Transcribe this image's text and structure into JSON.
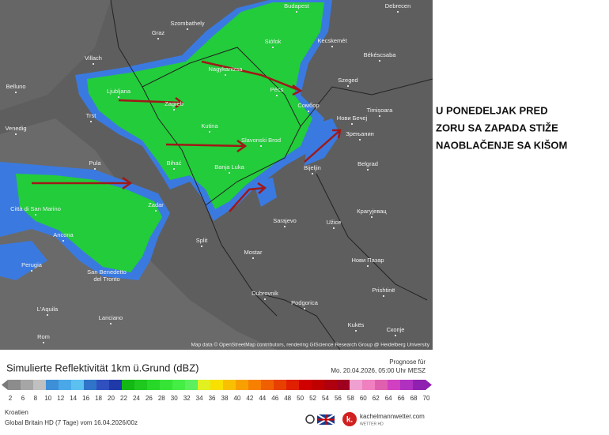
{
  "map": {
    "cities": [
      "Budapest",
      "Debrecen",
      "Szombathely",
      "Graz",
      "Siófok",
      "Kecskemét",
      "Békéscsaba",
      "Villach",
      "Nagykanizsa",
      "Szeged",
      "Belluno",
      "Ljubljana",
      "Zagreb",
      "Pécs",
      "Сомбор",
      "Timișoara",
      "Trst",
      "Venedig",
      "Kutina",
      "Нови Бечеј",
      "Slavonski Brod",
      "Зрењанин",
      "Pula",
      "Bihać",
      "Banja Luka",
      "Bijeljin",
      "Belgrad",
      "Città di San Marino",
      "Zadar",
      "Крагујевац",
      "Ancona",
      "Sarajevo",
      "Užice",
      "Perugia",
      "Split",
      "Mostar",
      "Нови Пазар",
      "San Benedetto del Tronto",
      "Dubrovnik",
      "Podgorica",
      "Prishtinë",
      "L'Aquila",
      "Lanciano",
      "Kukës",
      "Rom",
      "Скопје"
    ],
    "attribution": "Map data © OpenStreetMap contributors, rendering GIScience Research Group @ Heidelberg University"
  },
  "annotation": [
    "U PONEDELJAK PRED",
    "ZORU SA ZAPADA STIŽE",
    "NAOBLAČENJE SA KIŠOM"
  ],
  "legend": {
    "title": "Simulierte Reflektivität 1km ü.Grund (dBZ)",
    "forecast_label": "Prognose für",
    "forecast_time": "Mo. 20.04.2026, 05:00 Uhr MESZ",
    "ticks": [
      2,
      6,
      8,
      10,
      12,
      14,
      16,
      18,
      20,
      22,
      24,
      26,
      28,
      30,
      32,
      34,
      36,
      38,
      40,
      42,
      44,
      46,
      48,
      50,
      52,
      54,
      56,
      58,
      60,
      62,
      64,
      66,
      68,
      70
    ],
    "colors": [
      "#8c8c8c",
      "#a6a6a6",
      "#c0c0c0",
      "#3d8fd8",
      "#4aa8e8",
      "#5cc0f0",
      "#2f74c8",
      "#3050c0",
      "#1f3aa8",
      "#14b814",
      "#1ec81e",
      "#28d828",
      "#36e436",
      "#44ee44",
      "#5cf05c",
      "#e0f020",
      "#f8e000",
      "#f8c000",
      "#f8a000",
      "#f88000",
      "#f06000",
      "#e84000",
      "#e02000",
      "#d00000",
      "#c00000",
      "#b00010",
      "#a00020",
      "#f0a0d0",
      "#f080c0",
      "#e060b0",
      "#d040c0",
      "#b030c0",
      "#9020b0"
    ]
  },
  "footer": {
    "region": "Kroatien",
    "model": "Global Britain HD  (7 Tage)  vom  16.04.2026/00z",
    "brand": "kachelmannwetter.com",
    "brand_sub": "WETTER HD"
  }
}
